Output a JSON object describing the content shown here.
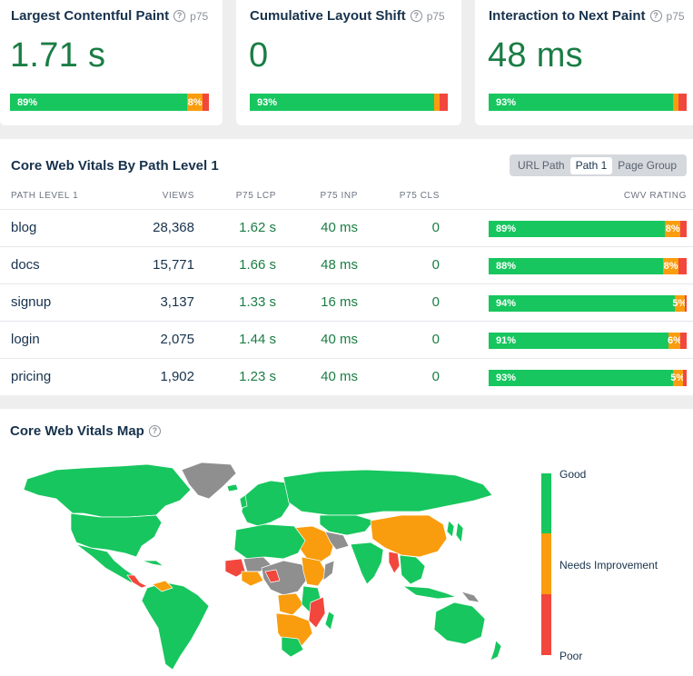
{
  "metrics": [
    {
      "title": "Largest Contentful Paint",
      "percentile": "p75",
      "value": "1.71 s",
      "good": 89,
      "ni": 8,
      "poor": 3,
      "good_label": "89%",
      "ni_label": "8%"
    },
    {
      "title": "Cumulative Layout Shift",
      "percentile": "p75",
      "value": "0",
      "good": 93,
      "ni": 3,
      "poor": 4,
      "good_label": "93%",
      "ni_label": ""
    },
    {
      "title": "Interaction to Next Paint",
      "percentile": "p75",
      "value": "48 ms",
      "good": 93,
      "ni": 3,
      "poor": 4,
      "good_label": "93%",
      "ni_label": ""
    }
  ],
  "table": {
    "title": "Core Web Vitals By Path Level 1",
    "toggle": [
      "URL Path",
      "Path 1",
      "Page Group"
    ],
    "toggle_active": "Path 1",
    "headers": {
      "path": "PATH LEVEL 1",
      "views": "VIEWS",
      "lcp": "P75 LCP",
      "inp": "P75 INP",
      "cls": "P75 CLS",
      "rating": "CWV RATING"
    },
    "rows": [
      {
        "path": "blog",
        "views": "28,368",
        "lcp": "1.62 s",
        "inp": "40 ms",
        "cls": "0",
        "good": 89,
        "ni": 8,
        "poor": 3,
        "good_label": "89%",
        "ni_label": "8%"
      },
      {
        "path": "docs",
        "views": "15,771",
        "lcp": "1.66 s",
        "inp": "48 ms",
        "cls": "0",
        "good": 88,
        "ni": 8,
        "poor": 4,
        "good_label": "88%",
        "ni_label": "8%"
      },
      {
        "path": "signup",
        "views": "3,137",
        "lcp": "1.33 s",
        "inp": "16 ms",
        "cls": "0",
        "good": 94,
        "ni": 5,
        "poor": 1,
        "good_label": "94%",
        "ni_label": "5%"
      },
      {
        "path": "login",
        "views": "2,075",
        "lcp": "1.44 s",
        "inp": "40 ms",
        "cls": "0",
        "good": 91,
        "ni": 6,
        "poor": 3,
        "good_label": "91%",
        "ni_label": "6%"
      },
      {
        "path": "pricing",
        "views": "1,902",
        "lcp": "1.23 s",
        "inp": "40 ms",
        "cls": "0",
        "good": 93,
        "ni": 5,
        "poor": 2,
        "good_label": "93%",
        "ni_label": "5%"
      }
    ]
  },
  "map": {
    "title": "Core Web Vitals Map",
    "legend": {
      "good": "Good",
      "ni": "Needs Improvement",
      "poor": "Poor"
    }
  },
  "colors": {
    "good": "#17c65e",
    "ni": "#f99d0e",
    "poor": "#f2473d",
    "no_data": "#8f8f8f",
    "value_text": "#1a7d44"
  },
  "icons": {
    "help": "help-circle-icon"
  }
}
